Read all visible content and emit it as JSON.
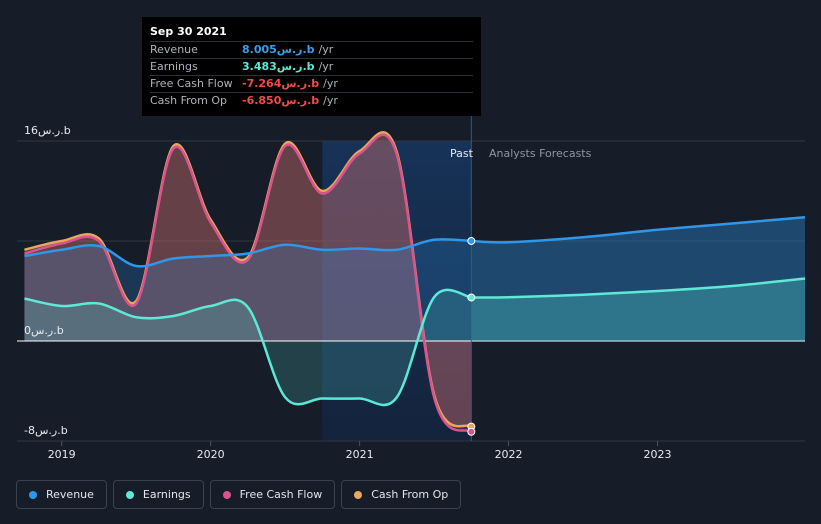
{
  "tooltip": {
    "date": "Sep 30 2021",
    "rows": [
      {
        "label": "Revenue",
        "value": "8.005ر.س.b",
        "unit": "/yr",
        "color": "#3a9ee8"
      },
      {
        "label": "Earnings",
        "value": "3.483ر.س.b",
        "unit": "/yr",
        "color": "#5ee8d6"
      },
      {
        "label": "Free Cash Flow",
        "value": "-7.264ر.س.b",
        "unit": "/yr",
        "color": "#ef4c4c"
      },
      {
        "label": "Cash From Op",
        "value": "-6.850ر.س.b",
        "unit": "/yr",
        "color": "#ef4c4c"
      }
    ]
  },
  "legend": [
    {
      "label": "Revenue",
      "color": "#2f96e8"
    },
    {
      "label": "Earnings",
      "color": "#5ee8d6"
    },
    {
      "label": "Free Cash Flow",
      "color": "#d9548f"
    },
    {
      "label": "Cash From Op",
      "color": "#e7a75c"
    }
  ],
  "labels": {
    "past": "Past",
    "forecast": "Analysts Forecasts"
  },
  "chart_data": {
    "type": "line",
    "y_unit": "ر.س.b",
    "ylim": [
      -8,
      16
    ],
    "y_ticks": [
      {
        "value": 16,
        "label": "16ر.س.b"
      },
      {
        "value": 0,
        "label": "0ر.س.b"
      },
      {
        "value": -8,
        "label": "-8ر.س.b"
      }
    ],
    "x_ticks": [
      "2019",
      "2020",
      "2021",
      "2022",
      "2023"
    ],
    "xlim": [
      2018.7,
      2023.99
    ],
    "divider_x": 2021.75,
    "shade_start": 2020.75,
    "grid": true,
    "legend_position": "bottom-left",
    "series": [
      {
        "name": "Revenue",
        "color": "#2f96e8",
        "forecast": true,
        "points": [
          [
            2018.75,
            6.8
          ],
          [
            2019.0,
            7.3
          ],
          [
            2019.25,
            7.6
          ],
          [
            2019.5,
            6.0
          ],
          [
            2019.75,
            6.6
          ],
          [
            2020.0,
            6.8
          ],
          [
            2020.25,
            7.0
          ],
          [
            2020.5,
            7.7
          ],
          [
            2020.75,
            7.3
          ],
          [
            2021.0,
            7.4
          ],
          [
            2021.25,
            7.3
          ],
          [
            2021.5,
            8.1
          ],
          [
            2021.75,
            8.005
          ],
          [
            2022.0,
            7.9
          ],
          [
            2022.5,
            8.3
          ],
          [
            2023.0,
            8.9
          ],
          [
            2023.5,
            9.4
          ],
          [
            2023.99,
            9.9
          ]
        ]
      },
      {
        "name": "Earnings",
        "color": "#5ee8d6",
        "forecast": true,
        "points": [
          [
            2018.75,
            3.4
          ],
          [
            2019.0,
            2.8
          ],
          [
            2019.25,
            3.0
          ],
          [
            2019.5,
            1.9
          ],
          [
            2019.75,
            2.0
          ],
          [
            2020.0,
            2.8
          ],
          [
            2020.25,
            2.7
          ],
          [
            2020.5,
            -4.5
          ],
          [
            2020.75,
            -4.6
          ],
          [
            2021.0,
            -4.6
          ],
          [
            2021.25,
            -4.5
          ],
          [
            2021.5,
            3.5
          ],
          [
            2021.75,
            3.483
          ],
          [
            2022.0,
            3.5
          ],
          [
            2022.5,
            3.7
          ],
          [
            2023.0,
            4.0
          ],
          [
            2023.5,
            4.4
          ],
          [
            2023.99,
            5.0
          ]
        ]
      },
      {
        "name": "Free Cash Flow",
        "color": "#d9548f",
        "forecast": false,
        "points": [
          [
            2018.75,
            7.0
          ],
          [
            2019.0,
            7.8
          ],
          [
            2019.25,
            8.0
          ],
          [
            2019.5,
            3.0
          ],
          [
            2019.75,
            15.4
          ],
          [
            2020.0,
            9.5
          ],
          [
            2020.25,
            6.5
          ],
          [
            2020.5,
            15.6
          ],
          [
            2020.75,
            11.8
          ],
          [
            2021.0,
            15.0
          ],
          [
            2021.25,
            14.9
          ],
          [
            2021.5,
            -4.5
          ],
          [
            2021.75,
            -7.264
          ]
        ]
      },
      {
        "name": "Cash From Op",
        "color": "#e7a75c",
        "forecast": false,
        "points": [
          [
            2018.75,
            7.3
          ],
          [
            2019.0,
            8.0
          ],
          [
            2019.25,
            8.2
          ],
          [
            2019.5,
            3.2
          ],
          [
            2019.75,
            15.6
          ],
          [
            2020.0,
            9.7
          ],
          [
            2020.25,
            6.7
          ],
          [
            2020.5,
            15.8
          ],
          [
            2020.75,
            12.0
          ],
          [
            2021.0,
            15.2
          ],
          [
            2021.25,
            15.1
          ],
          [
            2021.5,
            -4.3
          ],
          [
            2021.75,
            -6.85
          ]
        ]
      }
    ]
  }
}
